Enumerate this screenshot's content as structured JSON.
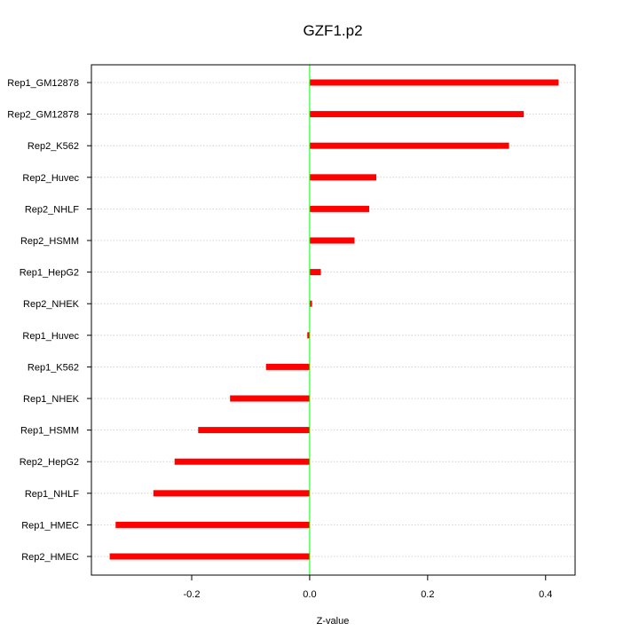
{
  "chart_data": {
    "type": "bar",
    "orientation": "horizontal",
    "title": "GZF1.p2",
    "xlabel": "Z-value",
    "ylabel": "",
    "xlim": [
      -0.37,
      0.45
    ],
    "x_ticks": [
      -0.2,
      0.0,
      0.2,
      0.4
    ],
    "x_tick_labels": [
      "-0.2",
      "0.0",
      "0.2",
      "0.4"
    ],
    "grid": "horizontal dotted",
    "reference_line": 0.0,
    "categories": [
      "Rep1_GM12878",
      "Rep2_GM12878",
      "Rep2_K562",
      "Rep2_Huvec",
      "Rep2_NHLF",
      "Rep2_HSMM",
      "Rep1_HepG2",
      "Rep2_NHEK",
      "Rep1_Huvec",
      "Rep1_K562",
      "Rep1_NHEK",
      "Rep1_HSMM",
      "Rep2_HepG2",
      "Rep1_NHLF",
      "Rep1_HMEC",
      "Rep2_HMEC"
    ],
    "values": [
      0.422,
      0.363,
      0.338,
      0.113,
      0.101,
      0.076,
      0.019,
      0.004,
      -0.004,
      -0.074,
      -0.135,
      -0.189,
      -0.229,
      -0.265,
      -0.329,
      -0.339
    ],
    "bar_color": "#ff0000",
    "reference_line_color": "#00ff00"
  }
}
